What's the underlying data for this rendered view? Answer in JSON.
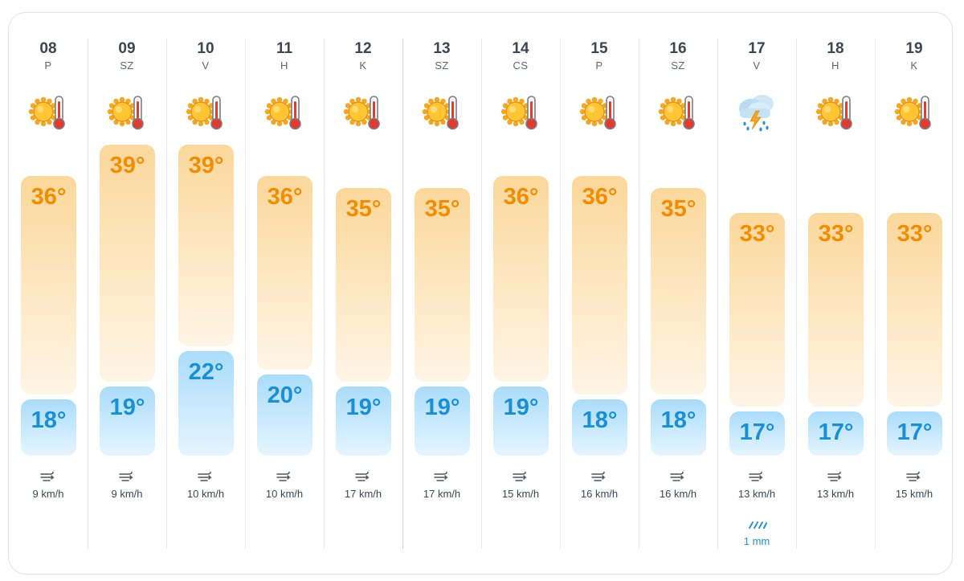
{
  "days": [
    {
      "date": "08",
      "dow": "P",
      "icon": "sun-thermometer-icon",
      "high": "36°",
      "low": "18°",
      "wind": "9 km/h"
    },
    {
      "date": "09",
      "dow": "SZ",
      "icon": "sun-thermometer-icon",
      "high": "39°",
      "low": "19°",
      "wind": "9 km/h"
    },
    {
      "date": "10",
      "dow": "V",
      "icon": "sun-thermometer-icon",
      "high": "39°",
      "low": "22°",
      "wind": "10 km/h"
    },
    {
      "date": "11",
      "dow": "H",
      "icon": "sun-thermometer-icon",
      "high": "36°",
      "low": "20°",
      "wind": "10 km/h"
    },
    {
      "date": "12",
      "dow": "K",
      "icon": "sun-thermometer-icon",
      "high": "35°",
      "low": "19°",
      "wind": "17 km/h"
    },
    {
      "date": "13",
      "dow": "SZ",
      "icon": "sun-thermometer-icon",
      "high": "35°",
      "low": "19°",
      "wind": "17 km/h"
    },
    {
      "date": "14",
      "dow": "CS",
      "icon": "sun-thermometer-icon",
      "high": "36°",
      "low": "19°",
      "wind": "15 km/h"
    },
    {
      "date": "15",
      "dow": "P",
      "icon": "sun-thermometer-icon",
      "high": "36°",
      "low": "18°",
      "wind": "16 km/h"
    },
    {
      "date": "16",
      "dow": "SZ",
      "icon": "sun-thermometer-icon",
      "high": "35°",
      "low": "18°",
      "wind": "16 km/h"
    },
    {
      "date": "17",
      "dow": "V",
      "icon": "thunderstorm-rain-icon",
      "high": "33°",
      "low": "17°",
      "wind": "13 km/h",
      "rain": "1 mm"
    },
    {
      "date": "18",
      "dow": "H",
      "icon": "sun-thermometer-icon",
      "high": "33°",
      "low": "17°",
      "wind": "13 km/h"
    },
    {
      "date": "19",
      "dow": "K",
      "icon": "sun-thermometer-icon",
      "high": "33°",
      "low": "17°",
      "wind": "15 km/h"
    }
  ],
  "colors": {
    "high": "#f28c00",
    "low": "#1a8fd6",
    "text": "#3c4650"
  }
}
